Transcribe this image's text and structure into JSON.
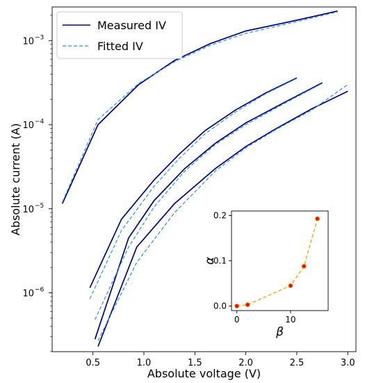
{
  "chart_data": [
    {
      "type": "line",
      "xlabel": "Absolute voltage (V)",
      "ylabel": "Absolute current (A)",
      "xlim": [
        0.1,
        3.08
      ],
      "ylim_log10": [
        -6.7,
        -2.6
      ],
      "yscale": "log",
      "xticks": [
        0.5,
        1.0,
        1.5,
        2.0,
        2.5,
        3.0
      ],
      "xtick_labels": [
        "0.5",
        "1.0",
        "1.5",
        "2.0",
        "2.5",
        "3.0"
      ],
      "yticks_log10": [
        -6,
        -5,
        -4,
        -3
      ],
      "ytick_labels": [
        "10",
        "10",
        "10",
        "10"
      ],
      "ytick_exponents": [
        "−6",
        "−5",
        "−4",
        "−3"
      ],
      "grid": false,
      "legend": {
        "placement": "top-left",
        "entries": [
          {
            "label": "Measured IV",
            "style": "solid",
            "color": "#00008b"
          },
          {
            "label": "Fitted IV",
            "style": "dashed",
            "color": "#1e90ff"
          }
        ]
      },
      "series": [
        {
          "kind": "measured",
          "color": "#00008b",
          "x": [
            0.2,
            0.55,
            0.95,
            1.3,
            1.65,
            2.0,
            2.5,
            2.9
          ],
          "y": [
            1.15e-05,
            0.0001,
            0.0003,
            0.00058,
            0.00092,
            0.0013,
            0.00175,
            0.00225
          ]
        },
        {
          "kind": "fitted",
          "color": "#1e90ff",
          "x": [
            0.2,
            0.55,
            0.95,
            1.3,
            1.65,
            2.0,
            2.5,
            2.9
          ],
          "y": [
            1.2e-05,
            0.000115,
            0.00031,
            0.00056,
            0.00088,
            0.00122,
            0.00168,
            0.0022
          ]
        },
        {
          "kind": "measured",
          "color": "#00008b",
          "x": [
            0.47,
            0.78,
            1.1,
            1.35,
            1.6,
            1.9,
            2.2,
            2.5
          ],
          "y": [
            1.15e-06,
            7.5e-06,
            2.2e-05,
            4.5e-05,
            8.5e-05,
            0.00015,
            0.00024,
            0.00036
          ]
        },
        {
          "kind": "fitted",
          "color": "#1e90ff",
          "x": [
            0.47,
            0.78,
            1.1,
            1.35,
            1.6,
            1.9,
            2.2,
            2.5
          ],
          "y": [
            8.5e-07,
            5.5e-06,
            1.85e-05,
            4e-05,
            7.8e-05,
            0.000142,
            0.000235,
            0.000355
          ]
        },
        {
          "kind": "measured",
          "color": "#00008b",
          "x": [
            0.52,
            0.85,
            1.1,
            1.4,
            1.7,
            2.0,
            2.4,
            2.75
          ],
          "y": [
            2.8e-07,
            4.5e-06,
            1.25e-05,
            3e-05,
            6e-05,
            0.000105,
            0.00019,
            0.000315
          ]
        },
        {
          "kind": "fitted",
          "color": "#1e90ff",
          "x": [
            0.52,
            0.85,
            1.1,
            1.4,
            1.7,
            2.0,
            2.4,
            2.75
          ],
          "y": [
            4.8e-07,
            3.5e-06,
            1.05e-05,
            2.8e-05,
            5.8e-05,
            0.0001,
            0.000185,
            0.00031
          ]
        },
        {
          "kind": "measured",
          "color": "#00008b",
          "x": [
            0.55,
            0.93,
            1.3,
            1.7,
            2.0,
            2.3,
            2.65,
            3.0
          ],
          "y": [
            2.3e-07,
            3.5e-06,
            1.15e-05,
            3e-05,
            5.5e-05,
            9e-05,
            0.000155,
            0.00025
          ]
        },
        {
          "kind": "fitted",
          "color": "#1e90ff",
          "x": [
            0.55,
            0.93,
            1.3,
            1.7,
            2.0,
            2.3,
            2.65,
            3.0
          ],
          "y": [
            2.7e-07,
            2.3e-06,
            9e-06,
            2.8e-05,
            5.3e-05,
            8.8e-05,
            0.00015,
            0.0003
          ]
        }
      ]
    },
    {
      "type": "line",
      "xlabel": "β",
      "ylabel": "α",
      "xlim": [
        -1,
        17
      ],
      "ylim": [
        -0.01,
        0.21
      ],
      "xticks": [
        0,
        10
      ],
      "xtick_labels": [
        "0",
        "10"
      ],
      "yticks": [
        0.0,
        0.1,
        0.2
      ],
      "ytick_labels": [
        "0.0",
        "0.1",
        "0.2"
      ],
      "grid": false,
      "series": [
        {
          "line_color": "#ffa500",
          "marker_color": "#ff0000",
          "x": [
            0,
            2,
            10,
            12.5,
            15
          ],
          "y": [
            0.0,
            0.003,
            0.045,
            0.088,
            0.193
          ]
        }
      ]
    }
  ]
}
